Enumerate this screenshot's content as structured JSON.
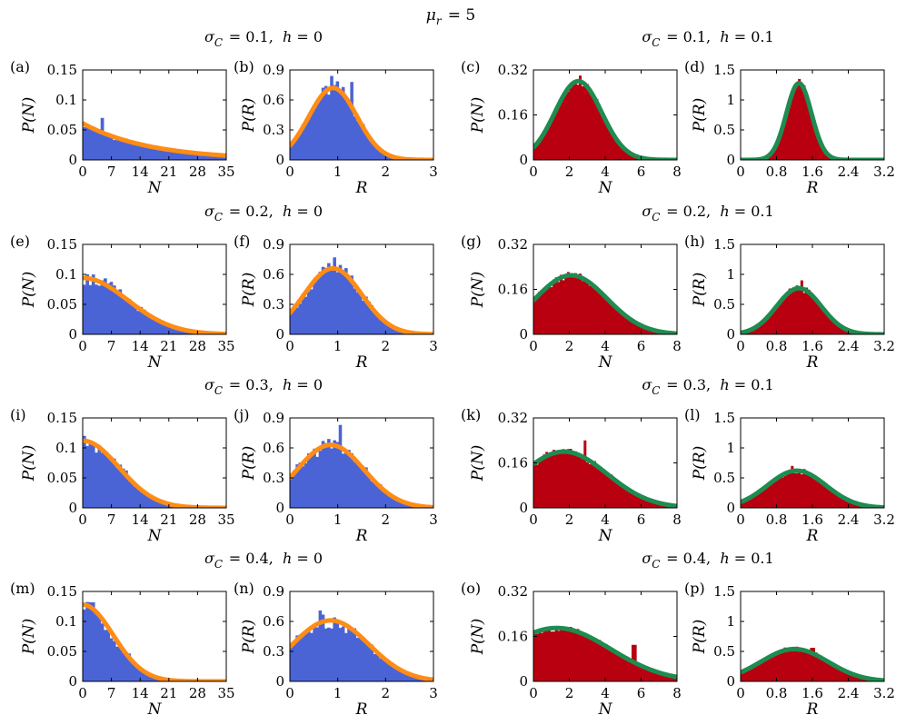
{
  "figure": {
    "suptitle": "μ_r = 5",
    "row_titles": [
      {
        "left": "σ_C = 0.1,  h = 0",
        "right": "σ_C = 0.1,  h = 0.1"
      },
      {
        "left": "σ_C = 0.2,  h = 0",
        "right": "σ_C = 0.2,  h = 0.1"
      },
      {
        "left": "σ_C = 0.3,  h = 0",
        "right": "σ_C = 0.3,  h = 0.1"
      },
      {
        "left": "σ_C = 0.4,  h = 0",
        "right": "σ_C = 0.4,  h = 0.1"
      }
    ],
    "colors": {
      "blue_hist": "#4a64d6",
      "orange_fit": "#ff8c14",
      "red_hist": "#b80010",
      "green_fit": "#1e8c50"
    }
  },
  "chart_data": [
    {
      "id": "a",
      "label": "(a)",
      "type": "bar",
      "xlabel": "N",
      "ylabel": "P(N)",
      "xlim": [
        0,
        35
      ],
      "ylim": [
        0,
        0.15
      ],
      "xticks": [
        "0",
        "7",
        "14",
        "21",
        "28",
        "35"
      ],
      "yticks": [
        "0",
        "0.05",
        "0.1",
        "0.15"
      ],
      "hist_color": "blue",
      "fit": {
        "kind": "exp",
        "a": 0.061,
        "k": 0.061
      },
      "bin_count": 48,
      "noise": 0.12,
      "spikes": [
        {
          "x": 4.5,
          "y": 0.07
        }
      ]
    },
    {
      "id": "b",
      "label": "(b)",
      "type": "bar",
      "xlabel": "R",
      "ylabel": "P(R)",
      "xlim": [
        0,
        3
      ],
      "ylim": [
        0,
        0.9
      ],
      "xticks": [
        "0",
        "1",
        "2",
        "3"
      ],
      "yticks": [
        "0",
        "0.3",
        "0.6",
        "0.9"
      ],
      "hist_color": "blue",
      "fit": {
        "kind": "gauss",
        "a": 0.72,
        "mu": 0.9,
        "sigma": 0.5
      },
      "bin_count": 50,
      "noise": 0.12,
      "spikes": [
        {
          "x": 0.85,
          "y": 0.84
        },
        {
          "x": 1.3,
          "y": 0.78
        }
      ]
    },
    {
      "id": "c",
      "label": "(c)",
      "type": "bar",
      "xlabel": "N",
      "ylabel": "P(N)",
      "xlim": [
        0,
        8
      ],
      "ylim": [
        0,
        0.32
      ],
      "xticks": [
        "0",
        "2",
        "4",
        "6",
        "8"
      ],
      "yticks": [
        "0",
        "0.16",
        "0.32"
      ],
      "hist_color": "red",
      "fit": {
        "kind": "gauss",
        "a": 0.28,
        "mu": 2.5,
        "sigma": 1.3
      },
      "bin_count": 60,
      "noise": 0.06,
      "spikes": [
        {
          "x": 2.6,
          "y": 0.3
        }
      ]
    },
    {
      "id": "d",
      "label": "(d)",
      "type": "bar",
      "xlabel": "R",
      "ylabel": "P(R)",
      "xlim": [
        0,
        3.2
      ],
      "ylim": [
        0,
        1.5
      ],
      "xticks": [
        "0",
        "0.8",
        "1.6",
        "2.4",
        "3.2"
      ],
      "yticks": [
        "0",
        "0.5",
        "1",
        "1.5"
      ],
      "hist_color": "red",
      "fit": {
        "kind": "gauss",
        "a": 1.28,
        "mu": 1.3,
        "sigma": 0.28
      },
      "bin_count": 60,
      "noise": 0.05,
      "spikes": [
        {
          "x": 1.3,
          "y": 1.35
        }
      ]
    },
    {
      "id": "e",
      "label": "(e)",
      "type": "bar",
      "xlabel": "N",
      "ylabel": "P(N)",
      "xlim": [
        0,
        35
      ],
      "ylim": [
        0,
        0.15
      ],
      "xticks": [
        "0",
        "7",
        "14",
        "21",
        "28",
        "35"
      ],
      "yticks": [
        "0",
        "0.05",
        "0.1",
        "0.15"
      ],
      "hist_color": "blue",
      "fit": {
        "kind": "gauss",
        "a": 0.094,
        "mu": 0,
        "sigma": 11
      },
      "bin_count": 48,
      "noise": 0.14,
      "spikes": [
        {
          "x": 1,
          "y": 0.1
        }
      ]
    },
    {
      "id": "f",
      "label": "(f)",
      "type": "bar",
      "xlabel": "R",
      "ylabel": "P(R)",
      "xlim": [
        0,
        3
      ],
      "ylim": [
        0,
        0.9
      ],
      "xticks": [
        "0",
        "1",
        "2",
        "3"
      ],
      "yticks": [
        "0",
        "0.3",
        "0.6",
        "0.9"
      ],
      "hist_color": "blue",
      "fit": {
        "kind": "gauss",
        "a": 0.66,
        "mu": 0.9,
        "sigma": 0.6
      },
      "bin_count": 50,
      "noise": 0.12,
      "spikes": [
        {
          "x": 0.95,
          "y": 0.77
        }
      ]
    },
    {
      "id": "g",
      "label": "(g)",
      "type": "bar",
      "xlabel": "N",
      "ylabel": "P(N)",
      "xlim": [
        0,
        8
      ],
      "ylim": [
        0,
        0.32
      ],
      "xticks": [
        "0",
        "2",
        "4",
        "6",
        "8"
      ],
      "yticks": [
        "0",
        "0.16",
        "0.32"
      ],
      "hist_color": "red",
      "fit": {
        "kind": "gauss",
        "a": 0.21,
        "mu": 2.1,
        "sigma": 2.0
      },
      "bin_count": 60,
      "noise": 0.07,
      "spikes": []
    },
    {
      "id": "h",
      "label": "(h)",
      "type": "bar",
      "xlabel": "R",
      "ylabel": "P(R)",
      "xlim": [
        0,
        3.2
      ],
      "ylim": [
        0,
        1.5
      ],
      "xticks": [
        "0",
        "0.8",
        "1.6",
        "2.4",
        "3.2"
      ],
      "yticks": [
        "0",
        "0.5",
        "1",
        "1.5"
      ],
      "hist_color": "red",
      "fit": {
        "kind": "gauss",
        "a": 0.77,
        "mu": 1.3,
        "sigma": 0.5
      },
      "bin_count": 60,
      "noise": 0.08,
      "spikes": [
        {
          "x": 1.35,
          "y": 0.9
        }
      ]
    },
    {
      "id": "i",
      "label": "(i)",
      "type": "bar",
      "xlabel": "N",
      "ylabel": "P(N)",
      "xlim": [
        0,
        35
      ],
      "ylim": [
        0,
        0.15
      ],
      "xticks": [
        "0",
        "7",
        "14",
        "21",
        "28",
        "35"
      ],
      "yticks": [
        "0",
        "0.05",
        "0.1",
        "0.15"
      ],
      "hist_color": "blue",
      "fit": {
        "kind": "gauss",
        "a": 0.112,
        "mu": 0,
        "sigma": 8.8
      },
      "bin_count": 48,
      "noise": 0.15,
      "spikes": [
        {
          "x": 0.5,
          "y": 0.12
        }
      ]
    },
    {
      "id": "j",
      "label": "(j)",
      "type": "bar",
      "xlabel": "R",
      "ylabel": "P(R)",
      "xlim": [
        0,
        3
      ],
      "ylim": [
        0,
        0.9
      ],
      "xticks": [
        "0",
        "1",
        "2",
        "3"
      ],
      "yticks": [
        "0",
        "0.3",
        "0.6",
        "0.9"
      ],
      "hist_color": "blue",
      "fit": {
        "kind": "gauss",
        "a": 0.63,
        "mu": 0.85,
        "sigma": 0.7
      },
      "bin_count": 50,
      "noise": 0.14,
      "spikes": [
        {
          "x": 1.05,
          "y": 0.83
        }
      ]
    },
    {
      "id": "k",
      "label": "(k)",
      "type": "bar",
      "xlabel": "N",
      "ylabel": "P(N)",
      "xlim": [
        0,
        8
      ],
      "ylim": [
        0,
        0.32
      ],
      "xticks": [
        "0",
        "2",
        "4",
        "6",
        "8"
      ],
      "yticks": [
        "0",
        "0.16",
        "0.32"
      ],
      "hist_color": "red",
      "fit": {
        "kind": "gauss",
        "a": 0.2,
        "mu": 1.7,
        "sigma": 2.4
      },
      "bin_count": 60,
      "noise": 0.07,
      "spikes": [
        {
          "x": 2.9,
          "y": 0.24
        }
      ]
    },
    {
      "id": "l",
      "label": "(l)",
      "type": "bar",
      "xlabel": "R",
      "ylabel": "P(R)",
      "xlim": [
        0,
        3.2
      ],
      "ylim": [
        0,
        1.5
      ],
      "xticks": [
        "0",
        "0.8",
        "1.6",
        "2.4",
        "3.2"
      ],
      "yticks": [
        "0",
        "0.5",
        "1",
        "1.5"
      ],
      "hist_color": "red",
      "fit": {
        "kind": "gauss",
        "a": 0.62,
        "mu": 1.25,
        "sigma": 0.65
      },
      "bin_count": 60,
      "noise": 0.09,
      "spikes": [
        {
          "x": 1.15,
          "y": 0.7
        }
      ]
    },
    {
      "id": "m",
      "label": "(m)",
      "type": "bar",
      "xlabel": "N",
      "ylabel": "P(N)",
      "xlim": [
        0,
        35
      ],
      "ylim": [
        0,
        0.15
      ],
      "xticks": [
        "0",
        "7",
        "14",
        "21",
        "28",
        "35"
      ],
      "yticks": [
        "0",
        "0.05",
        "0.1",
        "0.15"
      ],
      "hist_color": "blue",
      "fit": {
        "kind": "gauss",
        "a": 0.128,
        "mu": 0,
        "sigma": 7.4
      },
      "bin_count": 48,
      "noise": 0.15,
      "spikes": [
        {
          "x": 2.2,
          "y": 0.132
        }
      ]
    },
    {
      "id": "n",
      "label": "(n)",
      "type": "bar",
      "xlabel": "R",
      "ylabel": "P(R)",
      "xlim": [
        0,
        3
      ],
      "ylim": [
        0,
        0.9
      ],
      "xticks": [
        "0",
        "1",
        "2",
        "3"
      ],
      "yticks": [
        "0",
        "0.3",
        "0.6",
        "0.9"
      ],
      "hist_color": "blue",
      "fit": {
        "kind": "gauss",
        "a": 0.61,
        "mu": 0.85,
        "sigma": 0.8
      },
      "bin_count": 50,
      "noise": 0.14,
      "spikes": [
        {
          "x": 0.62,
          "y": 0.71
        }
      ]
    },
    {
      "id": "o",
      "label": "(o)",
      "type": "bar",
      "xlabel": "N",
      "ylabel": "P(N)",
      "xlim": [
        0,
        8
      ],
      "ylim": [
        0,
        0.32
      ],
      "xticks": [
        "0",
        "2",
        "4",
        "6",
        "8"
      ],
      "yticks": [
        "0",
        "0.16",
        "0.32"
      ],
      "hist_color": "red",
      "fit": {
        "kind": "gauss",
        "a": 0.19,
        "mu": 1.3,
        "sigma": 3.0
      },
      "bin_count": 60,
      "noise": 0.07,
      "spikes": [
        {
          "x": 5.6,
          "y": 0.13
        }
      ]
    },
    {
      "id": "p",
      "label": "(p)",
      "type": "bar",
      "xlabel": "R",
      "ylabel": "P(R)",
      "xlim": [
        0,
        3.2
      ],
      "ylim": [
        0,
        1.5
      ],
      "xticks": [
        "0",
        "0.8",
        "1.6",
        "2.4",
        "3.2"
      ],
      "yticks": [
        "0",
        "0.5",
        "1",
        "1.5"
      ],
      "hist_color": "red",
      "fit": {
        "kind": "gauss",
        "a": 0.54,
        "mu": 1.2,
        "sigma": 0.75
      },
      "bin_count": 60,
      "noise": 0.1,
      "spikes": [
        {
          "x": 1.6,
          "y": 0.56
        }
      ]
    }
  ]
}
